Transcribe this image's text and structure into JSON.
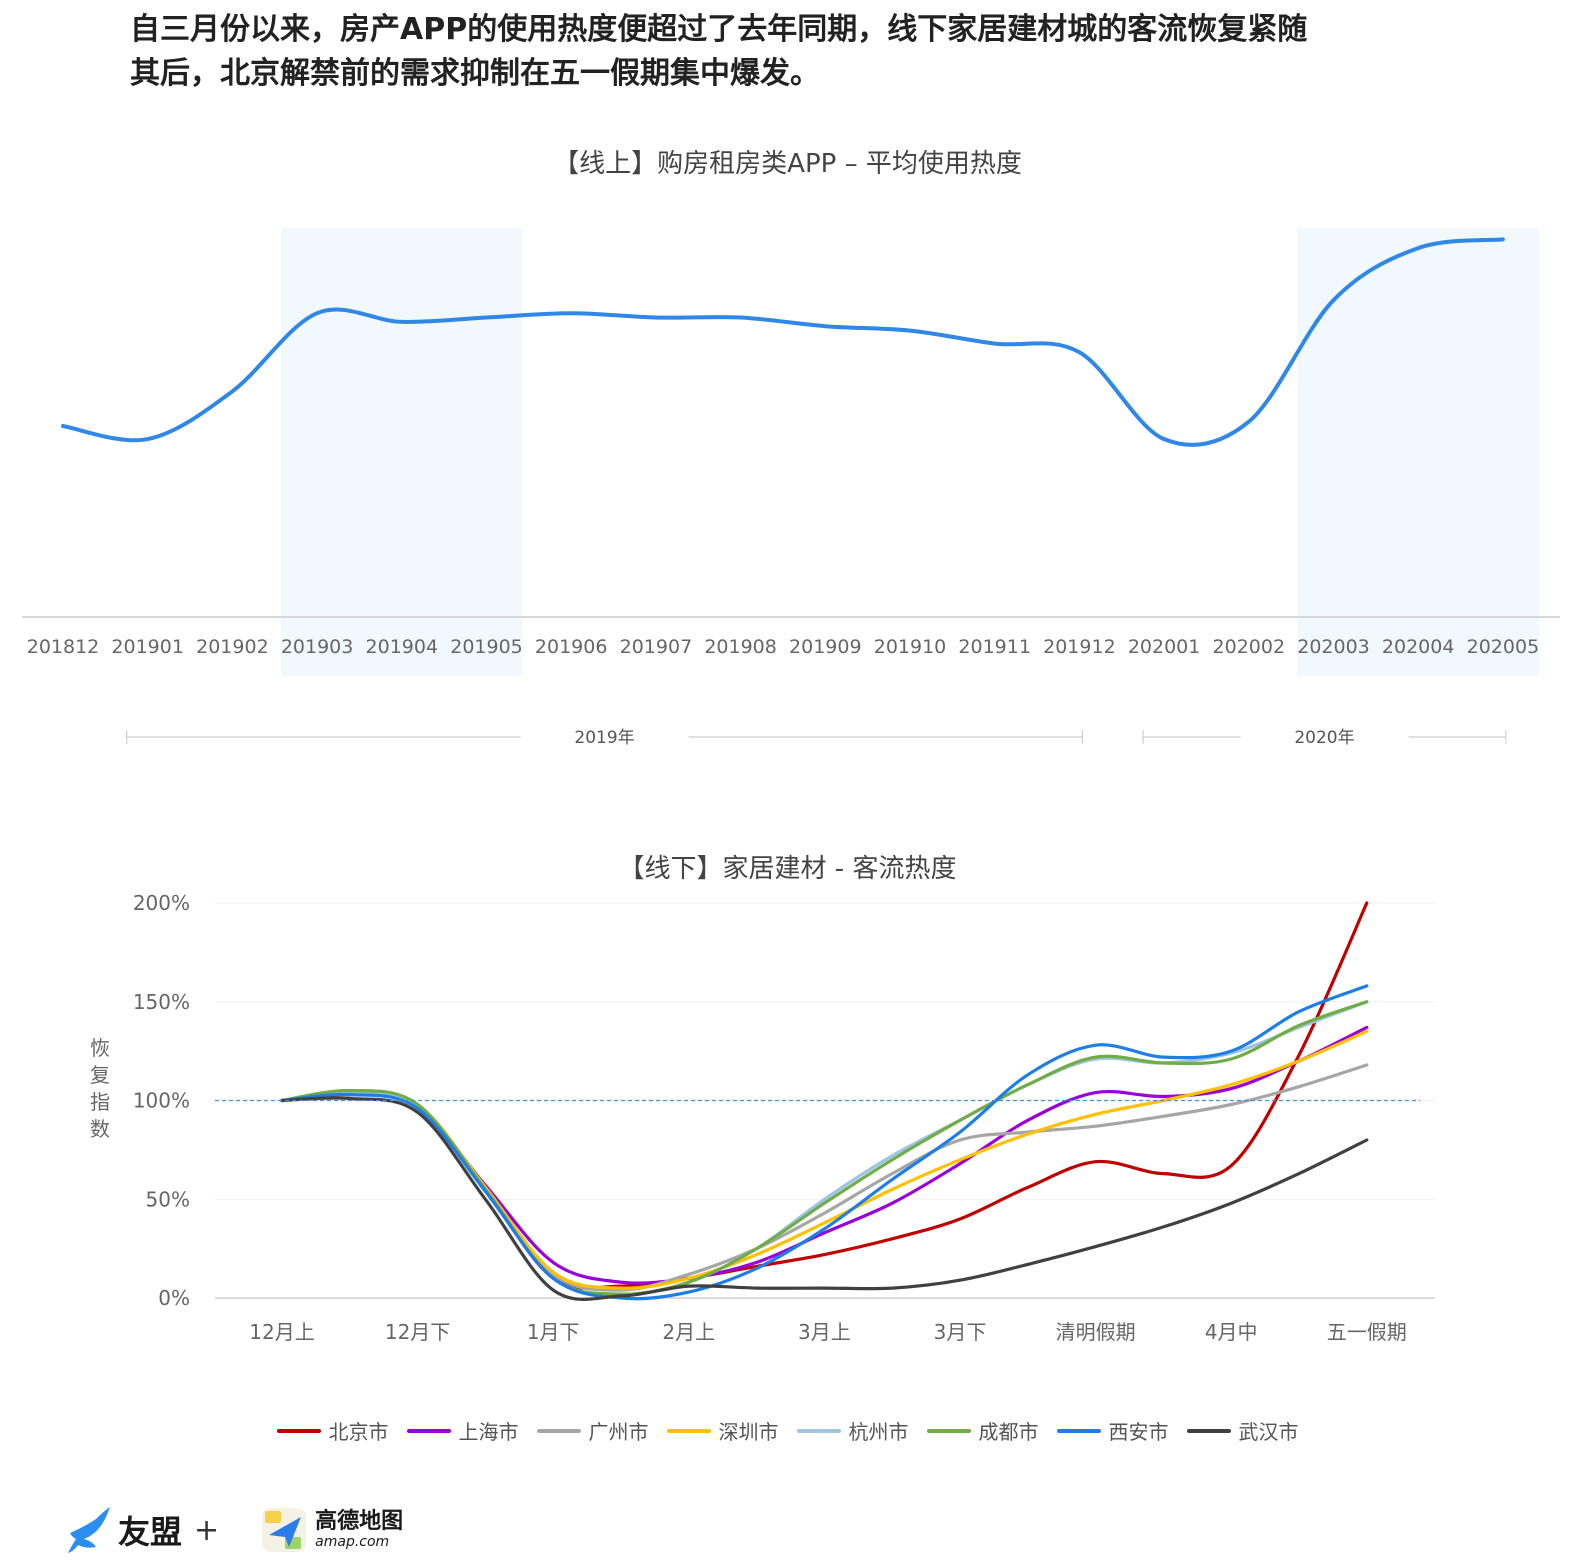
{
  "headline": {
    "line1": "自三月份以来，房产APP的使用热度便超过了去年同期，线下家居建材城的客流恢复紧随",
    "line2": "其后，北京解禁前的需求抑制在五一假期集中爆发。"
  },
  "colors": {
    "online_line": "#2f87e6",
    "highlight_band": "#f1f8fe",
    "reference_line": "#4a90d9"
  },
  "chart_data": [
    {
      "type": "line",
      "title": "【线上】购房租房类APP – 平均使用热度",
      "categories": [
        "201812",
        "201901",
        "201902",
        "201903",
        "201904",
        "201905",
        "201906",
        "201907",
        "201908",
        "201909",
        "201910",
        "201911",
        "201912",
        "202001",
        "202002",
        "202003",
        "202004",
        "202005"
      ],
      "values": [
        44,
        41,
        52,
        70,
        68,
        69,
        70,
        69,
        69,
        67,
        66,
        63,
        61,
        41,
        45,
        73,
        85,
        87
      ],
      "y_axis_shown": false,
      "ylim": [
        0,
        100
      ],
      "highlighted_ranges": [
        [
          "201903",
          "201905"
        ],
        [
          "202003",
          "202005"
        ]
      ],
      "year_groups": [
        {
          "label": "2019年",
          "from": "201901",
          "to": "201912"
        },
        {
          "label": "2020年",
          "from": "202001",
          "to": "202005"
        }
      ],
      "grid": false
    },
    {
      "type": "line",
      "title": "【线下】家居建材 - 客流热度",
      "ylabel": "恢复指数",
      "ylim": [
        0,
        200
      ],
      "yticks": [
        "0%",
        "50%",
        "100%",
        "150%",
        "200%"
      ],
      "reference_value": 100,
      "x_axis_labels": [
        "12月上",
        "12月下",
        "1月下",
        "2月上",
        "3月上",
        "3月下",
        "清明假期",
        "4月中",
        "五一假期"
      ],
      "x": [
        0,
        0.5,
        1,
        1.5,
        2,
        2.5,
        3,
        3.5,
        4,
        4.5,
        5,
        5.5,
        6,
        6.5,
        7,
        7.5,
        8
      ],
      "legend_position": "bottom",
      "grid": true,
      "series": [
        {
          "name": "北京市",
          "color": "#c00000",
          "values": [
            100,
            103,
            97,
            55,
            10,
            6,
            10,
            16,
            22,
            30,
            40,
            56,
            69,
            63,
            67,
            123,
            200
          ]
        },
        {
          "name": "上海市",
          "color": "#9b00d9",
          "values": [
            100,
            104,
            97,
            57,
            18,
            8,
            10,
            18,
            33,
            48,
            68,
            90,
            104,
            102,
            106,
            120,
            137
          ]
        },
        {
          "name": "广州市",
          "color": "#a6a6a6",
          "values": [
            100,
            105,
            98,
            56,
            12,
            4,
            12,
            25,
            43,
            63,
            80,
            84,
            87,
            92,
            98,
            107,
            118
          ]
        },
        {
          "name": "深圳市",
          "color": "#ffc000",
          "values": [
            100,
            105,
            98,
            56,
            13,
            5,
            10,
            22,
            38,
            55,
            70,
            83,
            93,
            100,
            108,
            120,
            135
          ]
        },
        {
          "name": "杭州市",
          "color": "#9dc3e6",
          "values": [
            100,
            104,
            97,
            55,
            10,
            2,
            8,
            25,
            50,
            72,
            90,
            108,
            121,
            119,
            124,
            137,
            150
          ]
        },
        {
          "name": "成都市",
          "color": "#70ad47",
          "values": [
            100,
            105,
            98,
            55,
            10,
            2,
            8,
            25,
            48,
            70,
            90,
            108,
            122,
            119,
            121,
            138,
            150
          ]
        },
        {
          "name": "西安市",
          "color": "#1e7ee8",
          "values": [
            100,
            103,
            96,
            54,
            10,
            0,
            3,
            15,
            35,
            60,
            84,
            113,
            128,
            122,
            125,
            145,
            158
          ]
        },
        {
          "name": "武汉市",
          "color": "#404040",
          "values": [
            100,
            101,
            94,
            50,
            4,
            1,
            6,
            5,
            5,
            5,
            9,
            17,
            26,
            36,
            48,
            63,
            80
          ]
        }
      ]
    }
  ],
  "logos": {
    "umeng": "友盟",
    "plus": "+",
    "amap_name": "高德地图",
    "amap_url": "amap.com"
  }
}
